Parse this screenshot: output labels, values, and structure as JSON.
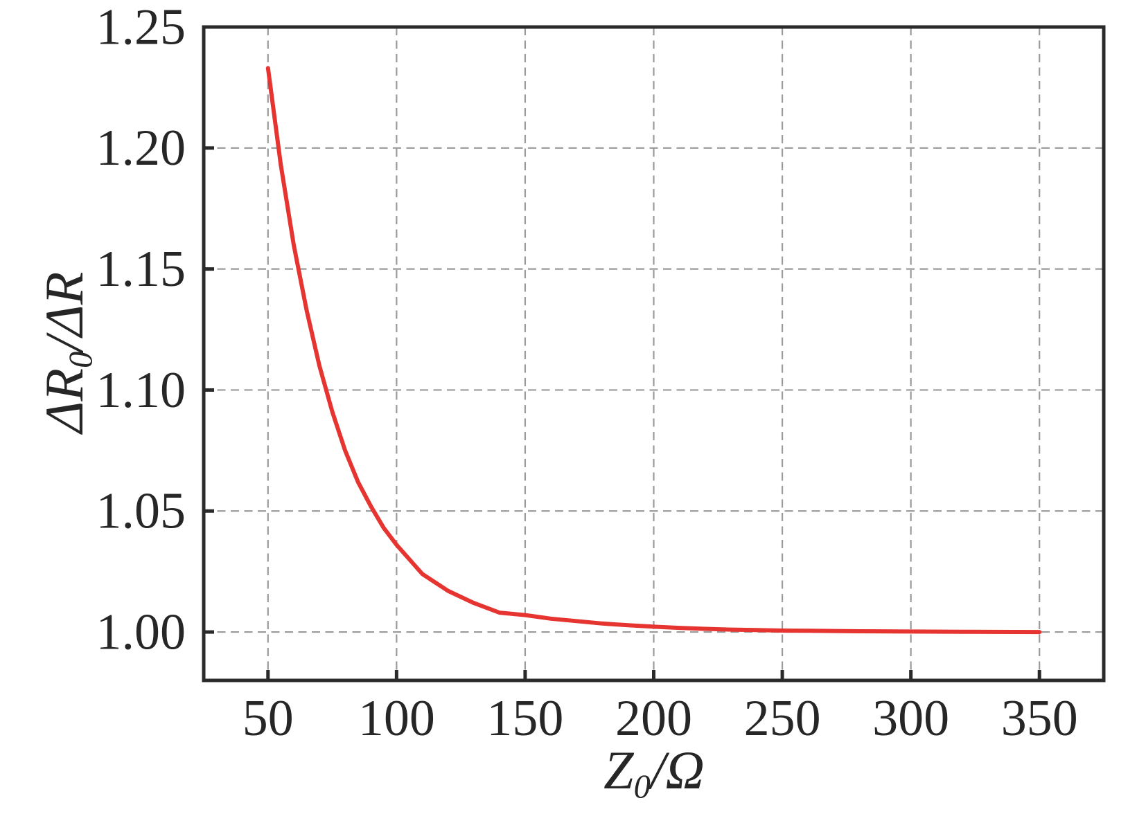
{
  "chart_data": {
    "type": "line",
    "title": "",
    "xlabel": {
      "prefix": "Z",
      "sub": "0",
      "suffix": "/Ω"
    },
    "ylabel": {
      "prefix": "ΔR",
      "sub": "0",
      "suffix": "/ΔR"
    },
    "xlim": [
      25,
      375
    ],
    "ylim": [
      0.98,
      1.25
    ],
    "grid": true,
    "grid_style": "dashed",
    "legend": "none",
    "x_ticks": [
      50,
      100,
      150,
      200,
      250,
      300,
      350
    ],
    "x_tick_labels": [
      "50",
      "100",
      "150",
      "200",
      "250",
      "300",
      "350"
    ],
    "y_ticks": [
      1.0,
      1.05,
      1.1,
      1.15,
      1.2,
      1.25
    ],
    "y_tick_labels": [
      "1.00",
      "1.05",
      "1.10",
      "1.15",
      "1.20",
      "1.25"
    ],
    "colors": {
      "curve": "#e63430",
      "frame": "#2a2a2a",
      "grid": "#9a9a9a",
      "text": "#262626",
      "background": "#ffffff"
    },
    "series": [
      {
        "name": "curve",
        "color": "#e63430",
        "x": [
          50,
          55,
          60,
          65,
          70,
          75,
          80,
          85,
          90,
          95,
          100,
          110,
          120,
          130,
          140,
          150,
          160,
          170,
          180,
          190,
          200,
          210,
          220,
          230,
          240,
          250,
          260,
          280,
          300,
          320,
          350
        ],
        "y": [
          1.233,
          1.193,
          1.16,
          1.133,
          1.11,
          1.091,
          1.075,
          1.062,
          1.052,
          1.043,
          1.036,
          1.024,
          1.017,
          1.012,
          1.008,
          1.007,
          1.0055,
          1.0045,
          1.0035,
          1.0028,
          1.0022,
          1.0017,
          1.0013,
          1.001,
          1.0008,
          1.0006,
          1.0005,
          1.0003,
          1.0002,
          1.0001,
          1.0
        ]
      }
    ]
  }
}
